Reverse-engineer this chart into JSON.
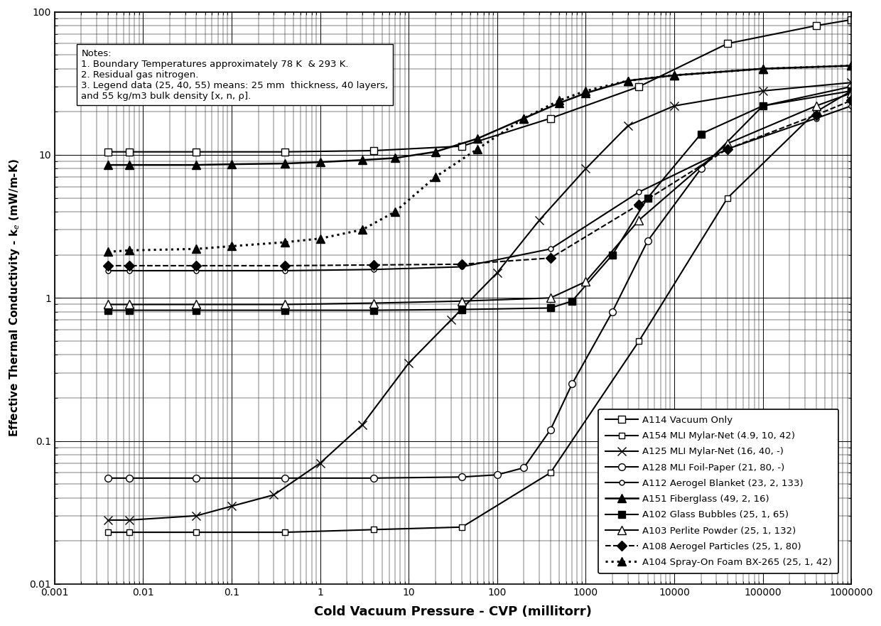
{
  "xlabel": "Cold Vacuum Pressure - CVP (millitorr)",
  "ylabel": "Effective Thermal Conductivity - kₑ (mW/m-K)",
  "xlim": [
    0.001,
    1000000
  ],
  "ylim": [
    0.01,
    100
  ],
  "notes": "Notes:\n1. Boundary Temperatures approximately 78 K  & 293 K.\n2. Residual gas nitrogen.\n3. Legend data (25, 40, 55) means: 25 mm  thickness, 40 layers,\nand 55 kg/m3 bulk density [x, n, ρ].",
  "A114_x": [
    0.004,
    0.007,
    0.04,
    0.4,
    4,
    40,
    400,
    4000,
    40000,
    400000,
    1000000
  ],
  "A114_y": [
    10.5,
    10.5,
    10.5,
    10.5,
    10.7,
    11.5,
    18.0,
    30.0,
    60.0,
    80.0,
    88.0
  ],
  "A154_x": [
    0.004,
    0.007,
    0.04,
    0.4,
    4,
    40,
    400,
    4000,
    40000,
    400000,
    1000000
  ],
  "A154_y": [
    0.023,
    0.023,
    0.023,
    0.023,
    0.024,
    0.025,
    0.06,
    0.5,
    5.0,
    20.0,
    28.0
  ],
  "A125_x": [
    0.004,
    0.007,
    0.04,
    0.1,
    0.3,
    1,
    3,
    10,
    30,
    100,
    300,
    1000,
    3000,
    10000,
    100000,
    1000000
  ],
  "A125_y": [
    0.028,
    0.028,
    0.03,
    0.035,
    0.042,
    0.07,
    0.13,
    0.35,
    0.7,
    1.5,
    3.5,
    8.0,
    16.0,
    22.0,
    28.0,
    32.0
  ],
  "A128_x": [
    0.004,
    0.007,
    0.04,
    0.4,
    4,
    40,
    100,
    200,
    400,
    700,
    2000,
    5000,
    20000,
    100000,
    1000000
  ],
  "A128_y": [
    0.055,
    0.055,
    0.055,
    0.055,
    0.055,
    0.056,
    0.058,
    0.065,
    0.12,
    0.25,
    0.8,
    2.5,
    8.0,
    22.0,
    30.0
  ],
  "A112_x": [
    0.004,
    0.007,
    0.04,
    0.4,
    4,
    40,
    400,
    4000,
    40000,
    400000,
    1000000
  ],
  "A112_y": [
    1.55,
    1.55,
    1.55,
    1.55,
    1.58,
    1.65,
    2.2,
    5.5,
    11.0,
    18.0,
    22.0
  ],
  "A151_x": [
    0.004,
    0.007,
    0.04,
    0.1,
    0.4,
    1,
    3,
    7,
    20,
    60,
    200,
    500,
    1000,
    3000,
    10000,
    100000,
    1000000
  ],
  "A151_y": [
    8.5,
    8.5,
    8.5,
    8.6,
    8.7,
    8.9,
    9.2,
    9.5,
    10.5,
    13.0,
    18.0,
    23.0,
    27.0,
    33.0,
    36.0,
    40.0,
    42.0
  ],
  "A102_x": [
    0.004,
    0.007,
    0.04,
    0.4,
    4,
    40,
    400,
    700,
    2000,
    5000,
    20000,
    100000,
    1000000
  ],
  "A102_y": [
    0.82,
    0.82,
    0.82,
    0.82,
    0.82,
    0.83,
    0.85,
    0.95,
    2.0,
    5.0,
    14.0,
    22.0,
    28.0
  ],
  "A103_x": [
    0.004,
    0.007,
    0.04,
    0.4,
    4,
    40,
    400,
    1000,
    4000,
    40000,
    400000,
    1000000
  ],
  "A103_y": [
    0.9,
    0.9,
    0.9,
    0.9,
    0.92,
    0.95,
    1.0,
    1.3,
    3.5,
    12.0,
    22.0,
    27.0
  ],
  "A108_x": [
    0.004,
    0.007,
    0.04,
    0.4,
    4,
    40,
    400,
    4000,
    40000,
    400000,
    1000000
  ],
  "A108_y": [
    1.68,
    1.68,
    1.68,
    1.68,
    1.7,
    1.72,
    1.9,
    4.5,
    11.0,
    19.0,
    24.0
  ],
  "A104_x": [
    0.004,
    0.007,
    0.04,
    0.1,
    0.4,
    1,
    3,
    7,
    20,
    60,
    200,
    500,
    1000,
    3000,
    10000,
    100000,
    1000000
  ],
  "A104_y": [
    2.1,
    2.15,
    2.2,
    2.3,
    2.45,
    2.6,
    3.0,
    4.0,
    7.0,
    11.0,
    18.0,
    24.0,
    28.0,
    33.0,
    36.0,
    40.0,
    42.0
  ],
  "background_color": "#ffffff"
}
